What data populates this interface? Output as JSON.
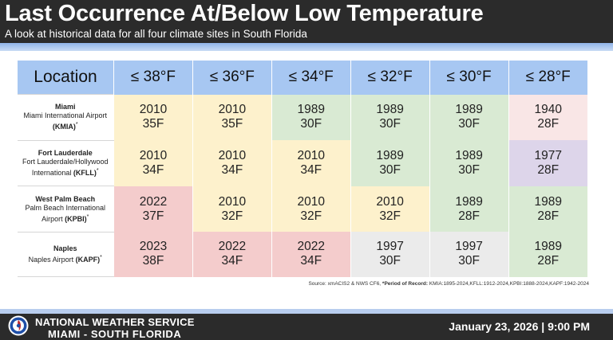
{
  "header": {
    "title": "Last Occurrence At/Below Low Temperature",
    "subtitle": "A look at historical data for all four climate sites in South Florida"
  },
  "table": {
    "location_header": "Location",
    "columns": [
      "≤ 38°F",
      "≤ 36°F",
      "≤ 34°F",
      "≤ 32°F",
      "≤ 30°F",
      "≤ 28°F"
    ],
    "rows": [
      {
        "name": "Miami",
        "airport": "Miami International Airport",
        "code": "(KMIA)",
        "cells": [
          {
            "year": "2010",
            "temp": "35F",
            "color": "#fdf1cc"
          },
          {
            "year": "2010",
            "temp": "35F",
            "color": "#fdf1cc"
          },
          {
            "year": "1989",
            "temp": "30F",
            "color": "#d9ead3"
          },
          {
            "year": "1989",
            "temp": "30F",
            "color": "#d9ead3"
          },
          {
            "year": "1989",
            "temp": "30F",
            "color": "#d9ead3"
          },
          {
            "year": "1940",
            "temp": "28F",
            "color": "#f9e6e6"
          }
        ]
      },
      {
        "name": "Fort Lauderdale",
        "airport": "Fort Lauderdale/Hollywood International",
        "code": "(KFLL)",
        "cells": [
          {
            "year": "2010",
            "temp": "34F",
            "color": "#fdf1cc"
          },
          {
            "year": "2010",
            "temp": "34F",
            "color": "#fdf1cc"
          },
          {
            "year": "2010",
            "temp": "34F",
            "color": "#fdf1cc"
          },
          {
            "year": "1989",
            "temp": "30F",
            "color": "#d9ead3"
          },
          {
            "year": "1989",
            "temp": "30F",
            "color": "#d9ead3"
          },
          {
            "year": "1977",
            "temp": "28F",
            "color": "#ddd5ea"
          }
        ]
      },
      {
        "name": "West Palm Beach",
        "airport": "Palm Beach International Airport",
        "code": "(KPBI)",
        "cells": [
          {
            "year": "2022",
            "temp": "37F",
            "color": "#f4cccc"
          },
          {
            "year": "2010",
            "temp": "32F",
            "color": "#fdf1cc"
          },
          {
            "year": "2010",
            "temp": "32F",
            "color": "#fdf1cc"
          },
          {
            "year": "2010",
            "temp": "32F",
            "color": "#fdf1cc"
          },
          {
            "year": "1989",
            "temp": "28F",
            "color": "#d9ead3"
          },
          {
            "year": "1989",
            "temp": "28F",
            "color": "#d9ead3"
          }
        ]
      },
      {
        "name": "Naples",
        "airport": "Naples Airport",
        "code": "(KAPF)",
        "cells": [
          {
            "year": "2023",
            "temp": "38F",
            "color": "#f4cccc"
          },
          {
            "year": "2022",
            "temp": "34F",
            "color": "#f4cccc"
          },
          {
            "year": "2022",
            "temp": "34F",
            "color": "#f4cccc"
          },
          {
            "year": "1997",
            "temp": "30F",
            "color": "#ebebeb"
          },
          {
            "year": "1997",
            "temp": "30F",
            "color": "#ebebeb"
          },
          {
            "year": "1989",
            "temp": "28F",
            "color": "#d9ead3"
          }
        ]
      }
    ]
  },
  "source": {
    "text": "Source: xmACIS2 & NWS CF6, ",
    "por_label": "*Period of Record:",
    "por_text": " KMIA:1895-2024,KFLL:1912-2024,KPBI:1888-2024,KAPF:1942-2024"
  },
  "footer": {
    "org_line1": "NATIONAL WEATHER SERVICE",
    "org_line2": "MIAMI - SOUTH FLORIDA",
    "datetime": "January 23, 2026 | 9:00 PM"
  }
}
